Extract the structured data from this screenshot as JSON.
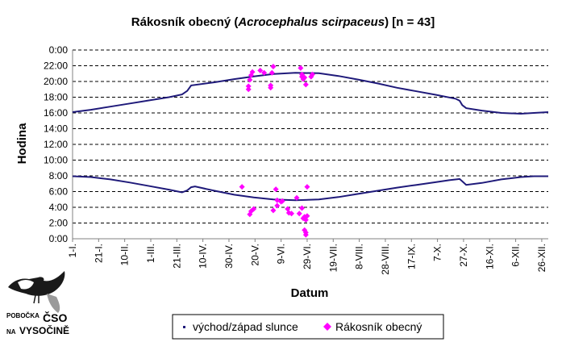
{
  "colors": {
    "sun_line": "#1f1a7a",
    "observations": "#ff00ff",
    "grid": "#000000",
    "axis": "#808080",
    "logo_bird": "#1a1a1a"
  },
  "logo": {
    "line1": "POBOČKA",
    "brand": "ČSO",
    "line2": "NA",
    "brand2": "VYSOČINĚ",
    "icon": "dipper-bird-icon"
  },
  "chart_data": {
    "type": "scatter",
    "title_prefix": "Rákosník obecný (",
    "title_italic": "Acrocephalus scirpaceus",
    "title_suffix": ") [n = 43]",
    "xlabel": "Datum",
    "ylabel": "Hodina",
    "x_unit": "day of year",
    "xlim": [
      1,
      366
    ],
    "y_unit": "hour of day",
    "ylim": [
      0,
      24
    ],
    "y_ticks": [
      {
        "value": 0,
        "label": "0:00"
      },
      {
        "value": 2,
        "label": "2:00"
      },
      {
        "value": 4,
        "label": "4:00"
      },
      {
        "value": 6,
        "label": "6:00"
      },
      {
        "value": 8,
        "label": "8:00"
      },
      {
        "value": 10,
        "label": "10:00"
      },
      {
        "value": 12,
        "label": "12:00"
      },
      {
        "value": 14,
        "label": "14:00"
      },
      {
        "value": 16,
        "label": "16:00"
      },
      {
        "value": 18,
        "label": "18:00"
      },
      {
        "value": 20,
        "label": "20:00"
      },
      {
        "value": 22,
        "label": "22:00"
      },
      {
        "value": 24,
        "label": "0:00"
      }
    ],
    "x_ticks": [
      {
        "day": 1,
        "label": "1-I."
      },
      {
        "day": 21,
        "label": "21-I."
      },
      {
        "day": 41,
        "label": "10-II."
      },
      {
        "day": 61,
        "label": "1-III."
      },
      {
        "day": 81,
        "label": "21-III."
      },
      {
        "day": 101,
        "label": "10-IV."
      },
      {
        "day": 121,
        "label": "30-IV."
      },
      {
        "day": 141,
        "label": "20-V."
      },
      {
        "day": 161,
        "label": "9-VI."
      },
      {
        "day": 181,
        "label": "29-VI."
      },
      {
        "day": 201,
        "label": "19-VII."
      },
      {
        "day": 221,
        "label": "8-VIII."
      },
      {
        "day": 241,
        "label": "28-VIII."
      },
      {
        "day": 261,
        "label": "17-IX."
      },
      {
        "day": 281,
        "label": "7-X."
      },
      {
        "day": 301,
        "label": "27-X."
      },
      {
        "day": 321,
        "label": "16-XI."
      },
      {
        "day": 341,
        "label": "6-XII."
      },
      {
        "day": 361,
        "label": "26-XII."
      }
    ],
    "grid": true,
    "legend_position": "bottom",
    "series": [
      {
        "name": "východ/západ slunce",
        "kind": "line",
        "sunrise": [
          [
            1,
            7.95
          ],
          [
            15,
            7.85
          ],
          [
            30,
            7.55
          ],
          [
            45,
            7.15
          ],
          [
            60,
            6.7
          ],
          [
            75,
            6.25
          ],
          [
            85,
            5.9
          ],
          [
            89,
            6.15
          ],
          [
            92,
            6.55
          ],
          [
            95,
            6.65
          ],
          [
            110,
            6.1
          ],
          [
            125,
            5.6
          ],
          [
            140,
            5.25
          ],
          [
            155,
            5.0
          ],
          [
            172,
            4.9
          ],
          [
            190,
            5.0
          ],
          [
            205,
            5.3
          ],
          [
            220,
            5.7
          ],
          [
            235,
            6.1
          ],
          [
            250,
            6.5
          ],
          [
            265,
            6.85
          ],
          [
            280,
            7.2
          ],
          [
            290,
            7.45
          ],
          [
            298,
            7.6
          ],
          [
            300,
            7.3
          ],
          [
            303,
            6.85
          ],
          [
            315,
            7.1
          ],
          [
            330,
            7.55
          ],
          [
            345,
            7.85
          ],
          [
            355,
            7.95
          ],
          [
            366,
            7.95
          ]
        ],
        "sunset": [
          [
            1,
            16.1
          ],
          [
            15,
            16.4
          ],
          [
            30,
            16.8
          ],
          [
            45,
            17.2
          ],
          [
            60,
            17.6
          ],
          [
            75,
            18.0
          ],
          [
            85,
            18.35
          ],
          [
            89,
            18.8
          ],
          [
            92,
            19.5
          ],
          [
            110,
            19.9
          ],
          [
            125,
            20.3
          ],
          [
            140,
            20.65
          ],
          [
            155,
            20.95
          ],
          [
            172,
            21.1
          ],
          [
            190,
            21.05
          ],
          [
            205,
            20.7
          ],
          [
            220,
            20.25
          ],
          [
            235,
            19.75
          ],
          [
            250,
            19.2
          ],
          [
            265,
            18.75
          ],
          [
            280,
            18.3
          ],
          [
            295,
            17.8
          ],
          [
            298,
            17.55
          ],
          [
            300,
            17.0
          ],
          [
            303,
            16.6
          ],
          [
            315,
            16.3
          ],
          [
            330,
            16.0
          ],
          [
            345,
            15.9
          ],
          [
            355,
            16.0
          ],
          [
            366,
            16.1
          ]
        ]
      },
      {
        "name": "Rákosník obecný",
        "kind": "scatter",
        "points": [
          [
            136,
            19.0
          ],
          [
            136,
            19.4
          ],
          [
            137,
            20.2
          ],
          [
            138,
            20.8
          ],
          [
            139,
            21.2
          ],
          [
            145,
            21.4
          ],
          [
            148,
            21.1
          ],
          [
            153,
            19.2
          ],
          [
            153,
            19.5
          ],
          [
            155,
            21.9
          ],
          [
            154,
            21.1
          ],
          [
            176,
            21.7
          ],
          [
            177,
            20.6
          ],
          [
            177,
            20.9
          ],
          [
            178,
            20.3
          ],
          [
            179,
            20.5
          ],
          [
            180,
            19.6
          ],
          [
            184,
            20.6
          ],
          [
            185,
            20.9
          ],
          [
            131,
            6.6
          ],
          [
            137,
            3.1
          ],
          [
            138,
            3.5
          ],
          [
            140,
            3.8
          ],
          [
            155,
            3.6
          ],
          [
            157,
            6.3
          ],
          [
            158,
            4.2
          ],
          [
            158,
            4.9
          ],
          [
            161,
            4.7
          ],
          [
            162,
            4.8
          ],
          [
            166,
            3.8
          ],
          [
            167,
            3.3
          ],
          [
            169,
            3.2
          ],
          [
            173,
            5.2
          ],
          [
            175,
            3.2
          ],
          [
            177,
            3.9
          ],
          [
            178,
            2.6
          ],
          [
            179,
            2.8
          ],
          [
            180,
            2.4
          ],
          [
            181,
            6.6
          ],
          [
            179,
            1.1
          ],
          [
            180,
            0.8
          ],
          [
            180,
            0.5
          ],
          [
            181,
            2.9
          ]
        ]
      }
    ]
  }
}
